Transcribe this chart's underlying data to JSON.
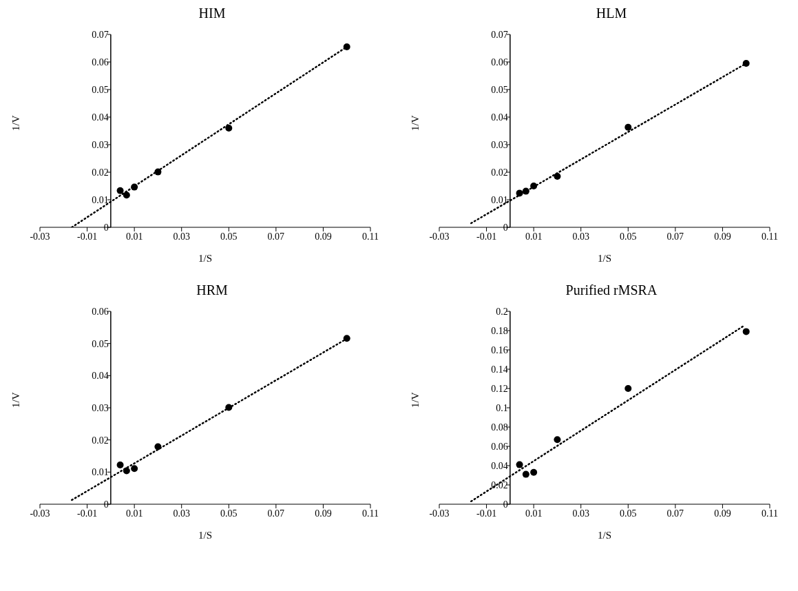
{
  "chart_data": [
    {
      "type": "scatter",
      "title": "HIM",
      "xlabel": "1/S",
      "ylabel": "1/V",
      "xlim": [
        -0.03,
        0.11
      ],
      "xticks": [
        -0.03,
        -0.01,
        0.01,
        0.03,
        0.05,
        0.07,
        0.09,
        0.11
      ],
      "ylim": [
        0,
        0.07
      ],
      "yticks": [
        0,
        0.01,
        0.02,
        0.03,
        0.04,
        0.05,
        0.06,
        0.07
      ],
      "marker": "circle",
      "series": [
        {
          "color": "#000000",
          "x": [
            0.004,
            0.0067,
            0.01,
            0.02,
            0.05,
            0.1
          ],
          "values": [
            0.0133,
            0.0117,
            0.0146,
            0.0201,
            0.036,
            0.0655
          ]
        },
        {
          "type": "line",
          "color": "#000000",
          "line_style": "dotted",
          "marker": "none",
          "x": [
            -0.0165,
            0.1
          ],
          "values": [
            0,
            0.0655
          ]
        }
      ]
    },
    {
      "type": "scatter",
      "title": "HLM",
      "xlabel": "1/S",
      "ylabel": "1/V",
      "xlim": [
        -0.03,
        0.11
      ],
      "xticks": [
        -0.03,
        -0.01,
        0.01,
        0.03,
        0.05,
        0.07,
        0.09,
        0.11
      ],
      "ylim": [
        0,
        0.07
      ],
      "yticks": [
        0,
        0.01,
        0.02,
        0.03,
        0.04,
        0.05,
        0.06,
        0.07
      ],
      "marker": "circle",
      "series": [
        {
          "color": "#000000",
          "x": [
            0.004,
            0.0067,
            0.01,
            0.02,
            0.05,
            0.1
          ],
          "values": [
            0.0124,
            0.0131,
            0.015,
            0.0185,
            0.0363,
            0.0595
          ]
        },
        {
          "type": "line",
          "color": "#000000",
          "line_style": "dotted",
          "marker": "none",
          "x": [
            -0.0165,
            0.1
          ],
          "values": [
            0.0015,
            0.0595
          ]
        }
      ]
    },
    {
      "type": "scatter",
      "title": "HRM",
      "xlabel": "1/S",
      "ylabel": "1/V",
      "xlim": [
        -0.03,
        0.11
      ],
      "xticks": [
        -0.03,
        -0.01,
        0.01,
        0.03,
        0.05,
        0.07,
        0.09,
        0.11
      ],
      "ylim": [
        0,
        0.06
      ],
      "yticks": [
        0,
        0.01,
        0.02,
        0.03,
        0.04,
        0.05,
        0.06
      ],
      "marker": "circle",
      "series": [
        {
          "color": "#000000",
          "x": [
            0.004,
            0.0067,
            0.01,
            0.02,
            0.05,
            0.1
          ],
          "values": [
            0.0122,
            0.0104,
            0.0111,
            0.0179,
            0.0301,
            0.0516
          ]
        },
        {
          "type": "line",
          "color": "#000000",
          "line_style": "dotted",
          "marker": "none",
          "x": [
            -0.0165,
            0.1
          ],
          "values": [
            0.0013,
            0.0515
          ]
        }
      ]
    },
    {
      "type": "scatter",
      "title": "Purified rMSRA",
      "xlabel": "1/S",
      "ylabel": "1/V",
      "xlim": [
        -0.03,
        0.11
      ],
      "xticks": [
        -0.03,
        -0.01,
        0.01,
        0.03,
        0.05,
        0.07,
        0.09,
        0.11
      ],
      "ylim": [
        0,
        0.2
      ],
      "yticks": [
        0,
        0.02,
        0.04,
        0.06,
        0.08,
        0.1,
        0.12,
        0.14,
        0.16,
        0.18,
        0.2
      ],
      "marker": "circle",
      "series": [
        {
          "color": "#000000",
          "x": [
            0.004,
            0.0067,
            0.01,
            0.02,
            0.05,
            0.1
          ],
          "values": [
            0.041,
            0.031,
            0.033,
            0.067,
            0.12,
            0.179
          ]
        },
        {
          "type": "line",
          "color": "#000000",
          "line_style": "dotted",
          "marker": "none",
          "x": [
            -0.0165,
            0.099
          ],
          "values": [
            0.003,
            0.185
          ]
        }
      ]
    }
  ]
}
